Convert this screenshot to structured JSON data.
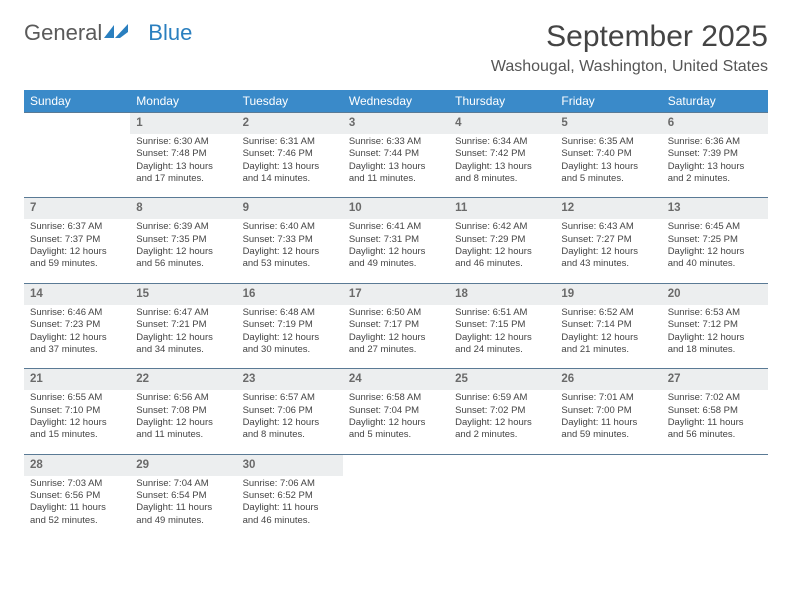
{
  "logo": {
    "text1": "General",
    "text2": "Blue"
  },
  "title": "September 2025",
  "location": "Washougal, Washington, United States",
  "colors": {
    "header_bg": "#3a8ac9",
    "header_text": "#ffffff",
    "daynum_bg": "#eceeef",
    "daynum_border": "#5a7a95",
    "body_text": "#444444",
    "logo_blue": "#2a7fbf"
  },
  "typography": {
    "title_fontsize": 30,
    "location_fontsize": 16,
    "header_fontsize": 12,
    "cell_fontsize": 9.5
  },
  "weekdays": [
    "Sunday",
    "Monday",
    "Tuesday",
    "Wednesday",
    "Thursday",
    "Friday",
    "Saturday"
  ],
  "weeks": [
    {
      "days": [
        null,
        {
          "num": "1",
          "sunrise": "Sunrise: 6:30 AM",
          "sunset": "Sunset: 7:48 PM",
          "daylight": "Daylight: 13 hours and 17 minutes."
        },
        {
          "num": "2",
          "sunrise": "Sunrise: 6:31 AM",
          "sunset": "Sunset: 7:46 PM",
          "daylight": "Daylight: 13 hours and 14 minutes."
        },
        {
          "num": "3",
          "sunrise": "Sunrise: 6:33 AM",
          "sunset": "Sunset: 7:44 PM",
          "daylight": "Daylight: 13 hours and 11 minutes."
        },
        {
          "num": "4",
          "sunrise": "Sunrise: 6:34 AM",
          "sunset": "Sunset: 7:42 PM",
          "daylight": "Daylight: 13 hours and 8 minutes."
        },
        {
          "num": "5",
          "sunrise": "Sunrise: 6:35 AM",
          "sunset": "Sunset: 7:40 PM",
          "daylight": "Daylight: 13 hours and 5 minutes."
        },
        {
          "num": "6",
          "sunrise": "Sunrise: 6:36 AM",
          "sunset": "Sunset: 7:39 PM",
          "daylight": "Daylight: 13 hours and 2 minutes."
        }
      ]
    },
    {
      "days": [
        {
          "num": "7",
          "sunrise": "Sunrise: 6:37 AM",
          "sunset": "Sunset: 7:37 PM",
          "daylight": "Daylight: 12 hours and 59 minutes."
        },
        {
          "num": "8",
          "sunrise": "Sunrise: 6:39 AM",
          "sunset": "Sunset: 7:35 PM",
          "daylight": "Daylight: 12 hours and 56 minutes."
        },
        {
          "num": "9",
          "sunrise": "Sunrise: 6:40 AM",
          "sunset": "Sunset: 7:33 PM",
          "daylight": "Daylight: 12 hours and 53 minutes."
        },
        {
          "num": "10",
          "sunrise": "Sunrise: 6:41 AM",
          "sunset": "Sunset: 7:31 PM",
          "daylight": "Daylight: 12 hours and 49 minutes."
        },
        {
          "num": "11",
          "sunrise": "Sunrise: 6:42 AM",
          "sunset": "Sunset: 7:29 PM",
          "daylight": "Daylight: 12 hours and 46 minutes."
        },
        {
          "num": "12",
          "sunrise": "Sunrise: 6:43 AM",
          "sunset": "Sunset: 7:27 PM",
          "daylight": "Daylight: 12 hours and 43 minutes."
        },
        {
          "num": "13",
          "sunrise": "Sunrise: 6:45 AM",
          "sunset": "Sunset: 7:25 PM",
          "daylight": "Daylight: 12 hours and 40 minutes."
        }
      ]
    },
    {
      "days": [
        {
          "num": "14",
          "sunrise": "Sunrise: 6:46 AM",
          "sunset": "Sunset: 7:23 PM",
          "daylight": "Daylight: 12 hours and 37 minutes."
        },
        {
          "num": "15",
          "sunrise": "Sunrise: 6:47 AM",
          "sunset": "Sunset: 7:21 PM",
          "daylight": "Daylight: 12 hours and 34 minutes."
        },
        {
          "num": "16",
          "sunrise": "Sunrise: 6:48 AM",
          "sunset": "Sunset: 7:19 PM",
          "daylight": "Daylight: 12 hours and 30 minutes."
        },
        {
          "num": "17",
          "sunrise": "Sunrise: 6:50 AM",
          "sunset": "Sunset: 7:17 PM",
          "daylight": "Daylight: 12 hours and 27 minutes."
        },
        {
          "num": "18",
          "sunrise": "Sunrise: 6:51 AM",
          "sunset": "Sunset: 7:15 PM",
          "daylight": "Daylight: 12 hours and 24 minutes."
        },
        {
          "num": "19",
          "sunrise": "Sunrise: 6:52 AM",
          "sunset": "Sunset: 7:14 PM",
          "daylight": "Daylight: 12 hours and 21 minutes."
        },
        {
          "num": "20",
          "sunrise": "Sunrise: 6:53 AM",
          "sunset": "Sunset: 7:12 PM",
          "daylight": "Daylight: 12 hours and 18 minutes."
        }
      ]
    },
    {
      "days": [
        {
          "num": "21",
          "sunrise": "Sunrise: 6:55 AM",
          "sunset": "Sunset: 7:10 PM",
          "daylight": "Daylight: 12 hours and 15 minutes."
        },
        {
          "num": "22",
          "sunrise": "Sunrise: 6:56 AM",
          "sunset": "Sunset: 7:08 PM",
          "daylight": "Daylight: 12 hours and 11 minutes."
        },
        {
          "num": "23",
          "sunrise": "Sunrise: 6:57 AM",
          "sunset": "Sunset: 7:06 PM",
          "daylight": "Daylight: 12 hours and 8 minutes."
        },
        {
          "num": "24",
          "sunrise": "Sunrise: 6:58 AM",
          "sunset": "Sunset: 7:04 PM",
          "daylight": "Daylight: 12 hours and 5 minutes."
        },
        {
          "num": "25",
          "sunrise": "Sunrise: 6:59 AM",
          "sunset": "Sunset: 7:02 PM",
          "daylight": "Daylight: 12 hours and 2 minutes."
        },
        {
          "num": "26",
          "sunrise": "Sunrise: 7:01 AM",
          "sunset": "Sunset: 7:00 PM",
          "daylight": "Daylight: 11 hours and 59 minutes."
        },
        {
          "num": "27",
          "sunrise": "Sunrise: 7:02 AM",
          "sunset": "Sunset: 6:58 PM",
          "daylight": "Daylight: 11 hours and 56 minutes."
        }
      ]
    },
    {
      "days": [
        {
          "num": "28",
          "sunrise": "Sunrise: 7:03 AM",
          "sunset": "Sunset: 6:56 PM",
          "daylight": "Daylight: 11 hours and 52 minutes."
        },
        {
          "num": "29",
          "sunrise": "Sunrise: 7:04 AM",
          "sunset": "Sunset: 6:54 PM",
          "daylight": "Daylight: 11 hours and 49 minutes."
        },
        {
          "num": "30",
          "sunrise": "Sunrise: 7:06 AM",
          "sunset": "Sunset: 6:52 PM",
          "daylight": "Daylight: 11 hours and 46 minutes."
        },
        null,
        null,
        null,
        null
      ]
    }
  ]
}
